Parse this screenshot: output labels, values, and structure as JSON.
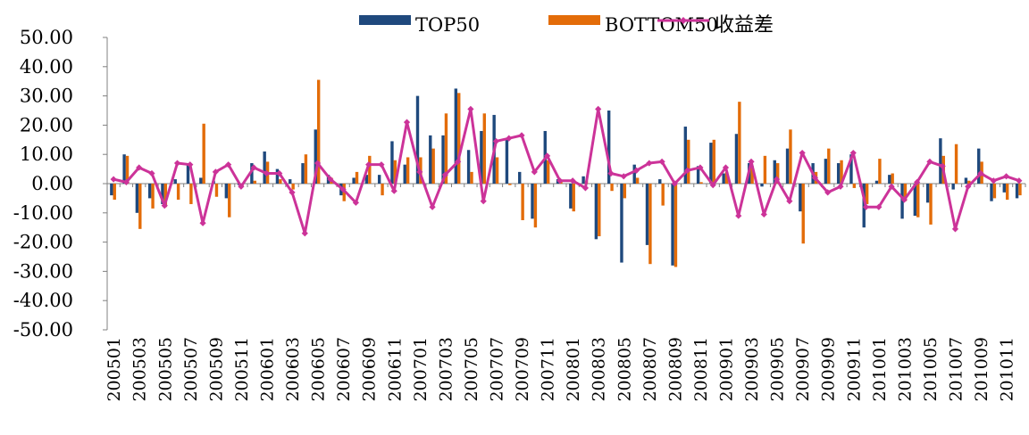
{
  "chart_data": {
    "type": "bar",
    "title": "",
    "xlabel": "",
    "ylabel": "",
    "ylim": [
      -50,
      50
    ],
    "yticks": [
      "50.00",
      "40.00",
      "30.00",
      "20.00",
      "10.00",
      "0.00",
      "-10.00",
      "-20.00",
      "-30.00",
      "-40.00",
      "-50.00"
    ],
    "grid": false,
    "legend_position": "top-center",
    "categories": [
      "200501",
      "200502",
      "200503",
      "200504",
      "200505",
      "200506",
      "200507",
      "200508",
      "200509",
      "200510",
      "200511",
      "200512",
      "200601",
      "200602",
      "200603",
      "200604",
      "200605",
      "200606",
      "200607",
      "200608",
      "200609",
      "200610",
      "200611",
      "200612",
      "200701",
      "200702",
      "200703",
      "200704",
      "200705",
      "200706",
      "200707",
      "200708",
      "200709",
      "200710",
      "200711",
      "200712",
      "200801",
      "200802",
      "200803",
      "200804",
      "200805",
      "200806",
      "200807",
      "200808",
      "200809",
      "200810",
      "200811",
      "200812",
      "200901",
      "200902",
      "200903",
      "200904",
      "200905",
      "200906",
      "200907",
      "200908",
      "200909",
      "200910",
      "200911",
      "200912",
      "201001",
      "201002",
      "201003",
      "201004",
      "201005",
      "201006",
      "201007",
      "201008",
      "201009",
      "201010",
      "201011",
      "201012"
    ],
    "tick_labels": [
      "200501",
      "200503",
      "200505",
      "200507",
      "200509",
      "200511",
      "200601",
      "200603",
      "200605",
      "200607",
      "200609",
      "200611",
      "200701",
      "200703",
      "200705",
      "200707",
      "200709",
      "200711",
      "200801",
      "200803",
      "200805",
      "200807",
      "200809",
      "200811",
      "200901",
      "200903",
      "200905",
      "200907",
      "200909",
      "200911",
      "201001",
      "201003",
      "201005",
      "201007",
      "201009",
      "201011"
    ],
    "series": [
      {
        "name": "TOP50",
        "kind": "bar",
        "color": "#1F497D",
        "values": [
          -4,
          10,
          -10,
          -5,
          -7,
          1.5,
          7,
          2,
          1,
          -5,
          -0.5,
          7,
          11,
          5,
          1.5,
          7,
          18.5,
          3,
          -4,
          2,
          3,
          3,
          14.5,
          6.5,
          30,
          16.5,
          16.5,
          32.5,
          11.5,
          18,
          23.5,
          15,
          4,
          -12,
          18,
          1.5,
          -8.5,
          2.5,
          -19,
          25,
          -27,
          6.5,
          -21,
          1.5,
          -28,
          19.5,
          6,
          14,
          3.5,
          17,
          7,
          -1,
          8,
          12,
          -9.5,
          7,
          8.5,
          7,
          10,
          -15,
          1,
          3,
          -12,
          -11,
          -6.5,
          15.5,
          -2,
          2,
          12,
          -6,
          -3,
          -5
        ]
      },
      {
        "name": "BOTTOM50",
        "kind": "bar",
        "color": "#E36C09",
        "values": [
          -5.5,
          9.5,
          -15.5,
          -8.5,
          -8,
          -5.5,
          -7,
          20.5,
          -4.5,
          -11.5,
          -1,
          1,
          7.5,
          1.5,
          -2,
          10,
          35.5,
          2,
          -6,
          4,
          9.5,
          -4,
          8,
          9,
          9,
          12,
          24,
          31,
          4,
          24,
          9,
          -0.5,
          -12.5,
          -15,
          8,
          1,
          -9.5,
          1,
          -18,
          -2.5,
          -5,
          2,
          -27.5,
          -7.5,
          -28.5,
          15,
          0.5,
          15,
          4,
          28,
          6,
          9.5,
          7,
          18.5,
          -20.5,
          4,
          12,
          8,
          -1.5,
          -7,
          8.5,
          3.5,
          -6,
          -11.5,
          -14,
          9.5,
          13.5,
          1,
          7.5,
          -5,
          -5.5,
          -4
        ]
      },
      {
        "name": "收益差",
        "kind": "line",
        "color": "#CC3399",
        "values": [
          1.5,
          0.5,
          5.5,
          3.5,
          -7.5,
          7,
          6.5,
          -13.5,
          4,
          6.5,
          -1,
          5.5,
          3.5,
          3.5,
          -3,
          -17,
          7,
          1.5,
          -2,
          -6.5,
          6.5,
          6.5,
          -2.5,
          21,
          4,
          -8,
          3,
          7.5,
          25.5,
          -6,
          14.5,
          15.5,
          16.5,
          4,
          9.5,
          1,
          1,
          -1.5,
          25.5,
          3.5,
          2.5,
          4.5,
          7,
          7.5,
          0,
          4.5,
          5.5,
          -0.5,
          5.5,
          -11,
          7.5,
          -10.5,
          1.5,
          -6,
          10.5,
          2,
          -3,
          -1,
          10.5,
          -8,
          -8,
          -1,
          -5.5,
          0.5,
          7.5,
          6,
          -15.5,
          -1,
          3.5,
          1,
          2.5,
          1
        ]
      }
    ]
  }
}
